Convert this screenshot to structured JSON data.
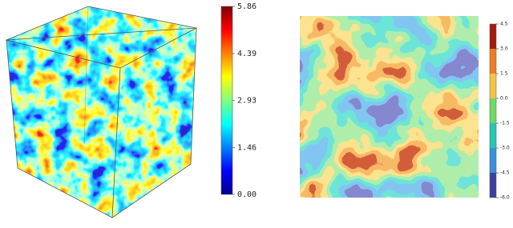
{
  "chart_data": [
    {
      "type": "colorbar",
      "ylim": [
        0,
        5.86
      ],
      "yticks": [
        5.86,
        4.39,
        2.93,
        1.46,
        {
          "value": 0,
          "label": "0.00"
        }
      ],
      "colors": [
        "#00008f",
        "#0000ff",
        "#0080ff",
        "#00ffff",
        "#80ff80",
        "#ffff00",
        "#ff8000",
        "#ff0000",
        "#800000"
      ]
    },
    {
      "type": "colorbar-discrete",
      "ylim": [
        -6,
        4.5
      ],
      "yticks": [
        4.5,
        {
          "value": 3,
          "label": "3.0"
        },
        1.5,
        {
          "value": 0,
          "label": "0.0"
        },
        -1.5,
        {
          "value": -3,
          "label": "-3.0"
        },
        -4.5,
        {
          "value": -6,
          "label": "-6.0"
        }
      ],
      "colors": [
        "#3d3fa0",
        "#3a8fe0",
        "#27c6b0",
        "#6edb66",
        "#f6c447",
        "#f07d22",
        "#a51c0c"
      ]
    }
  ]
}
